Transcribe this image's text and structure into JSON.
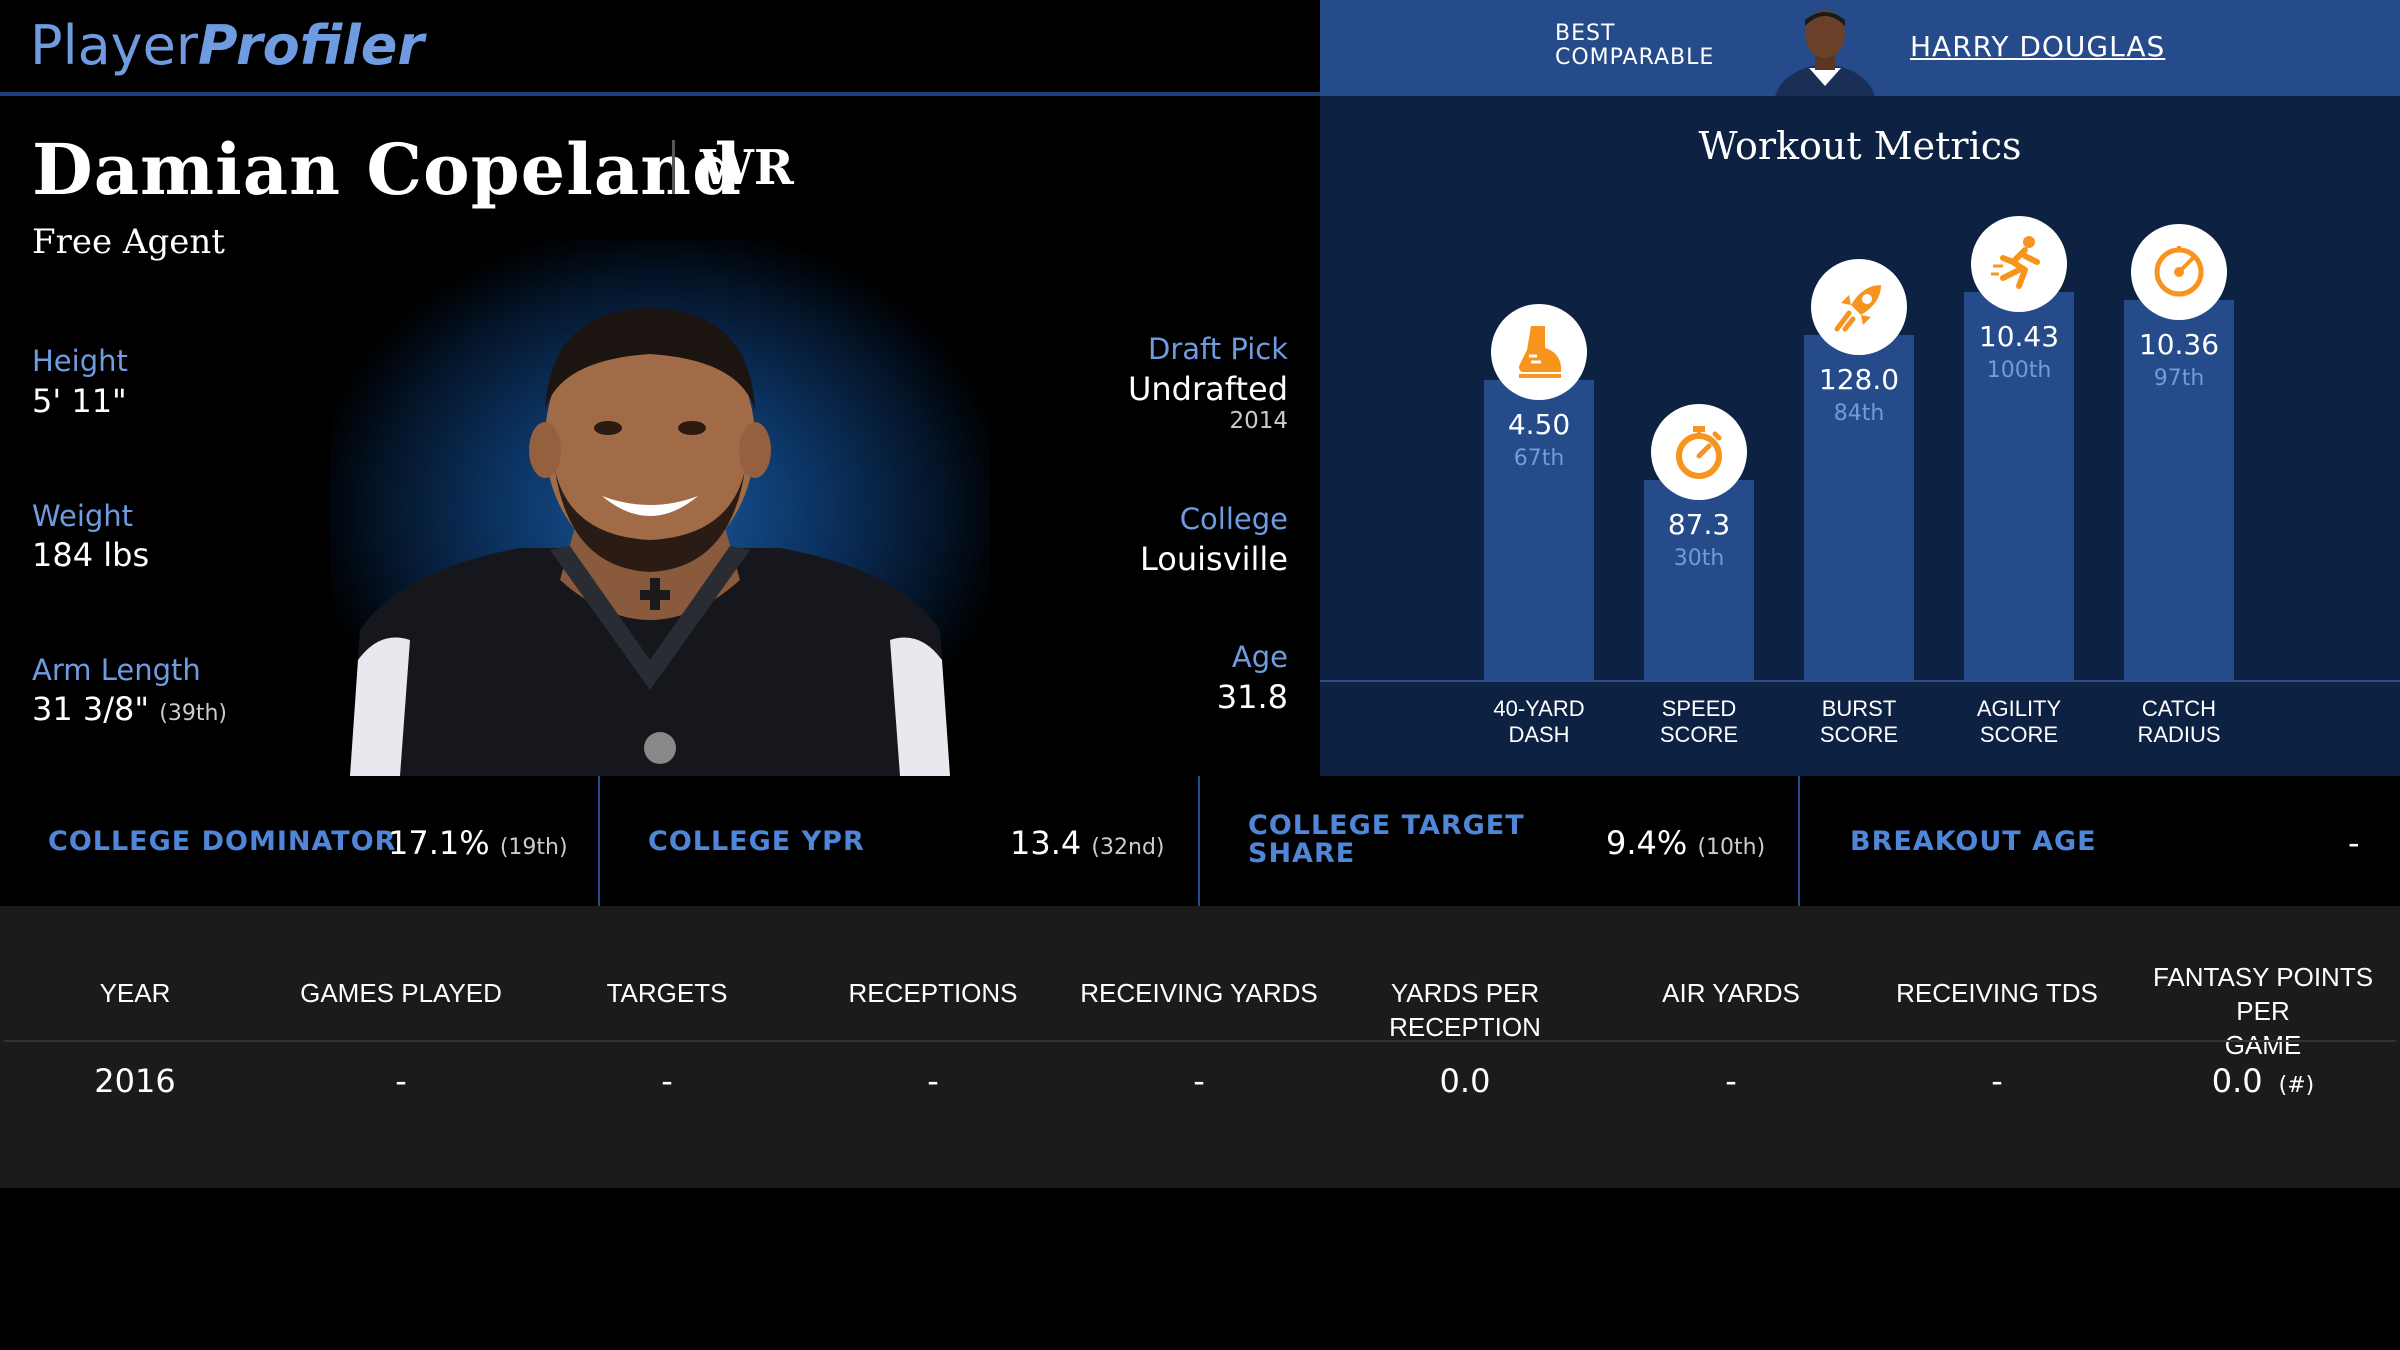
{
  "header": {
    "logo_part1": "Player",
    "logo_part2": "Profiler",
    "best_comparable_label_line1": "BEST",
    "best_comparable_label_line2": "COMPARABLE",
    "best_comparable_name": "HARRY DOUGLAS"
  },
  "player": {
    "name": "Damian Copeland",
    "position": "WR",
    "team": "Free Agent"
  },
  "bio_left": [
    {
      "label": "Height",
      "value": "5' 11\"",
      "extra": ""
    },
    {
      "label": "Weight",
      "value": "184 lbs",
      "extra": ""
    },
    {
      "label": "Arm Length",
      "value": "31 3/8\"",
      "extra": "(39th)"
    }
  ],
  "bio_right": {
    "draft_label": "Draft Pick",
    "draft_value": "Undrafted",
    "draft_year": "2014",
    "college_label": "College",
    "college_value": "Louisville",
    "age_label": "Age",
    "age_value": "31.8"
  },
  "workout": {
    "title": "Workout Metrics",
    "metrics": [
      {
        "label_line1": "40-YARD",
        "label_line2": "DASH",
        "value": "4.50",
        "percentile": "67th",
        "percentile_num": 67,
        "icon": "sneaker-icon"
      },
      {
        "label_line1": "SPEED",
        "label_line2": "SCORE",
        "value": "87.3",
        "percentile": "30th",
        "percentile_num": 30,
        "icon": "stopwatch-icon"
      },
      {
        "label_line1": "BURST",
        "label_line2": "SCORE",
        "value": "128.0",
        "percentile": "84th",
        "percentile_num": 84,
        "icon": "rocket-icon"
      },
      {
        "label_line1": "AGILITY",
        "label_line2": "SCORE",
        "value": "10.43",
        "percentile": "100th",
        "percentile_num": 100,
        "icon": "runner-icon"
      },
      {
        "label_line1": "CATCH",
        "label_line2": "RADIUS",
        "value": "10.36",
        "percentile": "97th",
        "percentile_num": 97,
        "icon": "target-icon"
      }
    ],
    "accent_color": "#f7941d",
    "bar_color": "#254b8a"
  },
  "college_stats": [
    {
      "label_line1": "COLLEGE DOMINATOR",
      "label_line2": "",
      "value": "17.1%",
      "rank": "(19th)"
    },
    {
      "label_line1": "COLLEGE YPR",
      "label_line2": "",
      "value": "13.4",
      "rank": "(32nd)"
    },
    {
      "label_line1": "COLLEGE TARGET",
      "label_line2": "SHARE",
      "value": "9.4%",
      "rank": "(10th)"
    },
    {
      "label_line1": "BREAKOUT AGE",
      "label_line2": "",
      "value": "-",
      "rank": ""
    }
  ],
  "table": {
    "headers": [
      [
        "YEAR",
        ""
      ],
      [
        "GAMES PLAYED",
        ""
      ],
      [
        "TARGETS",
        ""
      ],
      [
        "RECEPTIONS",
        ""
      ],
      [
        "RECEIVING YARDS",
        ""
      ],
      [
        "YARDS PER RECEPTION",
        ""
      ],
      [
        "AIR YARDS",
        ""
      ],
      [
        "RECEIVING TDS",
        ""
      ],
      [
        "FANTASY POINTS PER",
        "GAME"
      ]
    ],
    "rows": [
      {
        "cells": [
          "2016",
          "-",
          "-",
          "-",
          "-",
          "0.0",
          "-",
          "-",
          "0.0"
        ],
        "fantasy_rank": "(#)"
      }
    ]
  }
}
